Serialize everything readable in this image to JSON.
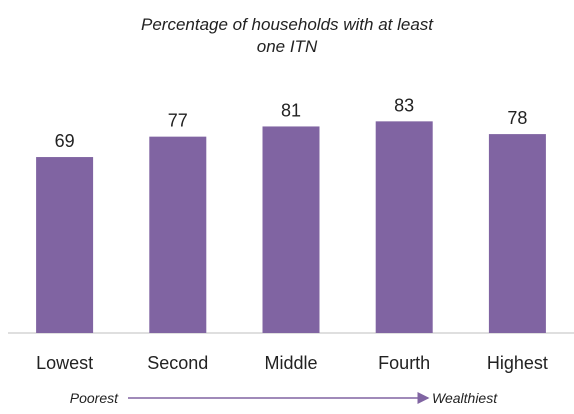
{
  "chart_data": {
    "type": "bar",
    "title": "Percentage of households with at least one ITN",
    "categories": [
      "Lowest",
      "Second",
      "Middle",
      "Fourth",
      "Highest"
    ],
    "values": [
      69,
      77,
      81,
      83,
      78
    ],
    "color": "#8064a2",
    "annotations": [
      "Poorest",
      "Wealthiest"
    ]
  }
}
